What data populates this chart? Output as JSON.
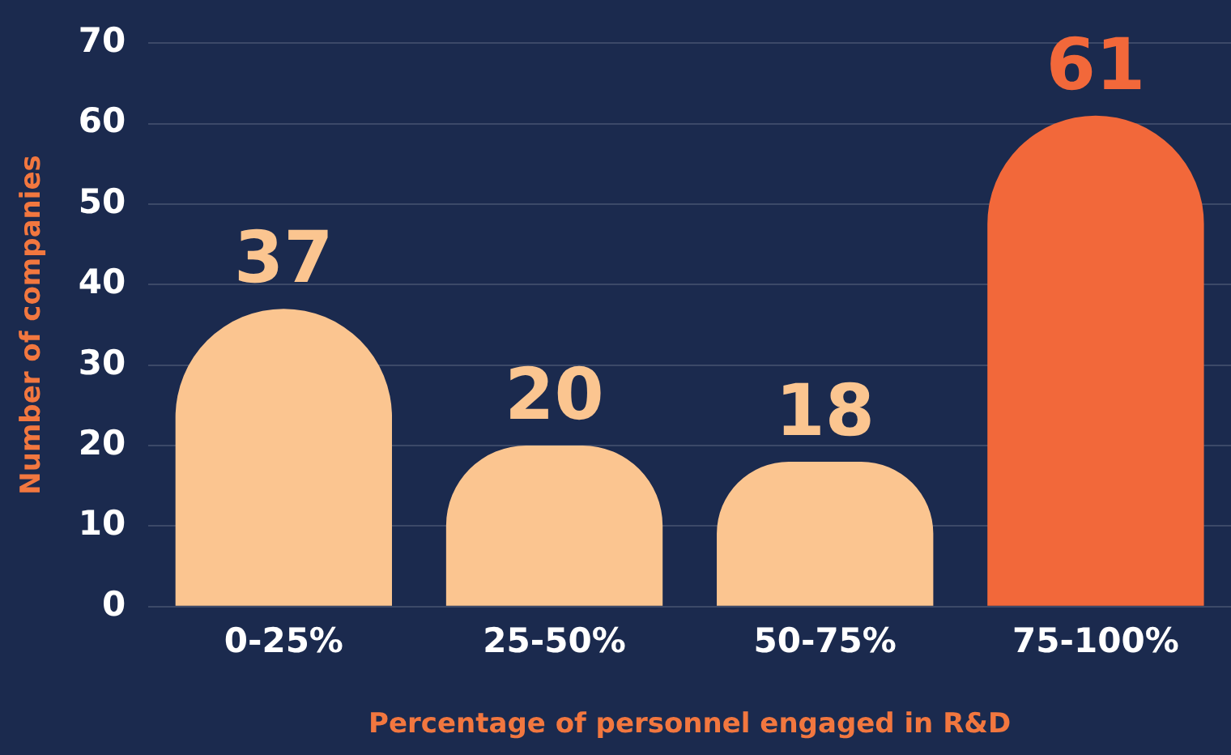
{
  "chart_data": {
    "type": "bar",
    "xlabel": "Percentage of personnel engaged in R&D",
    "ylabel": "Number of companies",
    "categories": [
      "0-25%",
      "25-50%",
      "50-75%",
      "75-100%"
    ],
    "values": [
      37,
      20,
      18,
      61
    ],
    "colors": [
      "#fbc590",
      "#fbc590",
      "#fbc590",
      "#f2683a"
    ],
    "ylim": [
      0,
      70
    ],
    "yticks": [
      0,
      10,
      20,
      30,
      40,
      50,
      60,
      70
    ],
    "grid": "y",
    "data_labels": true
  }
}
